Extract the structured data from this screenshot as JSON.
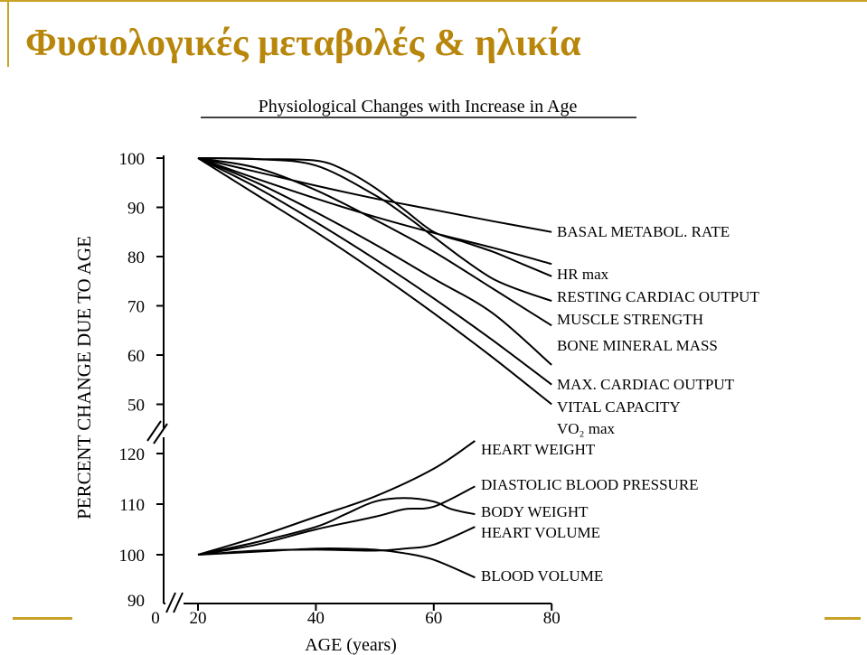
{
  "slide": {
    "title": "Φυσιολογικές μεταβολές & ηλικία",
    "title_color": "#b8860b",
    "accent_color": "#c9a227"
  },
  "chart_data": {
    "type": "line",
    "title": "Physiological Changes with Increase in Age",
    "xlabel": "AGE (years)",
    "ylabel": "PERCENT CHANGE DUE TO AGE",
    "xlim": [
      0,
      80
    ],
    "x_ticks": [
      "0",
      "20",
      "40",
      "60",
      "80"
    ],
    "upper_panel": {
      "ylim": [
        50,
        100
      ],
      "y_ticks": [
        "100",
        "90",
        "80",
        "70",
        "60",
        "50"
      ],
      "series": [
        {
          "name": "BASAL METABOL. RATE",
          "x": [
            20,
            30,
            40,
            50,
            60,
            70,
            80
          ],
          "y": [
            100,
            97.2,
            94.4,
            91.8,
            89.5,
            87.2,
            85
          ]
        },
        {
          "name": "HR max",
          "x": [
            20,
            30,
            40,
            50,
            60,
            70,
            80
          ],
          "y": [
            100,
            95.8,
            91.8,
            88.1,
            84.8,
            81.8,
            78.5
          ]
        },
        {
          "name": "RESTING CARDIAC OUTPUT",
          "x": [
            20,
            30,
            40,
            45,
            50,
            55,
            60,
            65,
            70,
            75,
            80
          ],
          "y": [
            100,
            99.8,
            99.5,
            97.5,
            94,
            89.5,
            85,
            83,
            81,
            78.5,
            76
          ]
        },
        {
          "name": "MUSCLE STRENGTH",
          "x": [
            20,
            30,
            40,
            50,
            55,
            60,
            65,
            70,
            75,
            80
          ],
          "y": [
            100,
            99.8,
            98.5,
            92.5,
            88.5,
            84,
            79.5,
            75.5,
            73,
            71
          ]
        },
        {
          "name": "BONE MINERAL MASS",
          "x": [
            20,
            30,
            40,
            50,
            60,
            70,
            80
          ],
          "y": [
            100,
            98,
            93.5,
            87.5,
            81,
            73.5,
            66
          ]
        },
        {
          "name": "MAX. CARDIAC OUTPUT",
          "x": [
            20,
            30,
            40,
            50,
            60,
            70,
            80
          ],
          "y": [
            100,
            95,
            89,
            82.5,
            75.5,
            68.5,
            58
          ]
        },
        {
          "name": "VITAL CAPACITY",
          "x": [
            20,
            30,
            40,
            50,
            60,
            70,
            80
          ],
          "y": [
            100,
            94,
            87,
            79.5,
            71.5,
            63,
            54
          ]
        },
        {
          "name": "VO₂ max",
          "x": [
            20,
            30,
            40,
            50,
            60,
            70,
            80
          ],
          "y": [
            100,
            92.5,
            85,
            77,
            68.5,
            59.5,
            50
          ]
        }
      ]
    },
    "lower_panel": {
      "ylim": [
        90,
        125
      ],
      "y_ticks": [
        "120",
        "110",
        "100",
        "90"
      ],
      "series": [
        {
          "name": "HEART WEIGHT",
          "x": [
            20,
            30,
            40,
            50,
            60,
            67
          ],
          "y": [
            100,
            103.5,
            107.5,
            111.5,
            117,
            122.5
          ]
        },
        {
          "name": "DIASTOLIC BLOOD PRESSURE",
          "x": [
            20,
            30,
            40,
            50,
            55,
            60,
            67
          ],
          "y": [
            100,
            102,
            105,
            107.5,
            109,
            109.5,
            113.5
          ]
        },
        {
          "name": "BODY WEIGHT",
          "x": [
            20,
            30,
            40,
            45,
            50,
            55,
            60,
            63,
            67
          ],
          "y": [
            100,
            102.5,
            105.5,
            108,
            110.5,
            111.2,
            110.5,
            109,
            108
          ]
        },
        {
          "name": "HEART VOLUME",
          "x": [
            20,
            30,
            40,
            50,
            55,
            60,
            67
          ],
          "y": [
            100,
            100.8,
            101,
            100.8,
            101.2,
            102,
            105.5
          ]
        },
        {
          "name": "BLOOD VOLUME",
          "x": [
            20,
            30,
            40,
            45,
            50,
            55,
            60,
            67
          ],
          "y": [
            100,
            100.6,
            101.2,
            101.2,
            101,
            100.3,
            99,
            95.5
          ]
        }
      ]
    },
    "grid": false,
    "legend": "line-end labels (right)"
  }
}
